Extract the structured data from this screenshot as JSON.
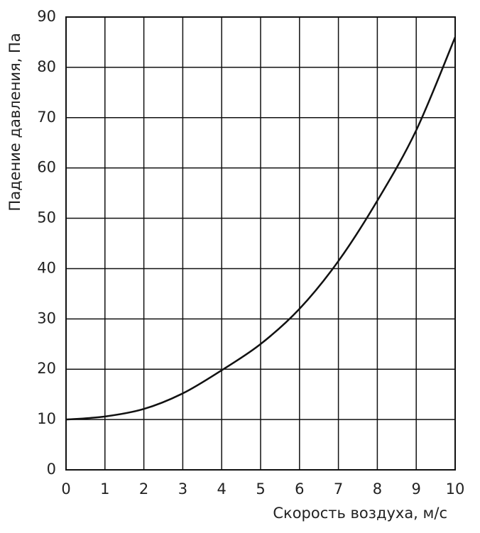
{
  "chart_data": {
    "type": "line",
    "x_label": "Скорость воздуха, м/с",
    "y_label": "Падение давления, Па",
    "x": [
      0,
      1,
      2,
      3,
      4,
      5,
      6,
      7,
      8,
      9,
      10
    ],
    "series": [
      {
        "color": "#111111",
        "values": [
          10,
          10.6,
          12.1,
          15.2,
          19.8,
          25,
          32,
          41.5,
          53.5,
          67.5,
          86
        ]
      }
    ],
    "xlim": [
      0,
      10
    ],
    "xticks": [
      0,
      1,
      2,
      3,
      4,
      5,
      6,
      7,
      8,
      9,
      10
    ],
    "ylim": [
      0,
      90
    ],
    "yticks": [
      0,
      10,
      20,
      30,
      40,
      50,
      60,
      70,
      80,
      90
    ],
    "grid": true
  }
}
